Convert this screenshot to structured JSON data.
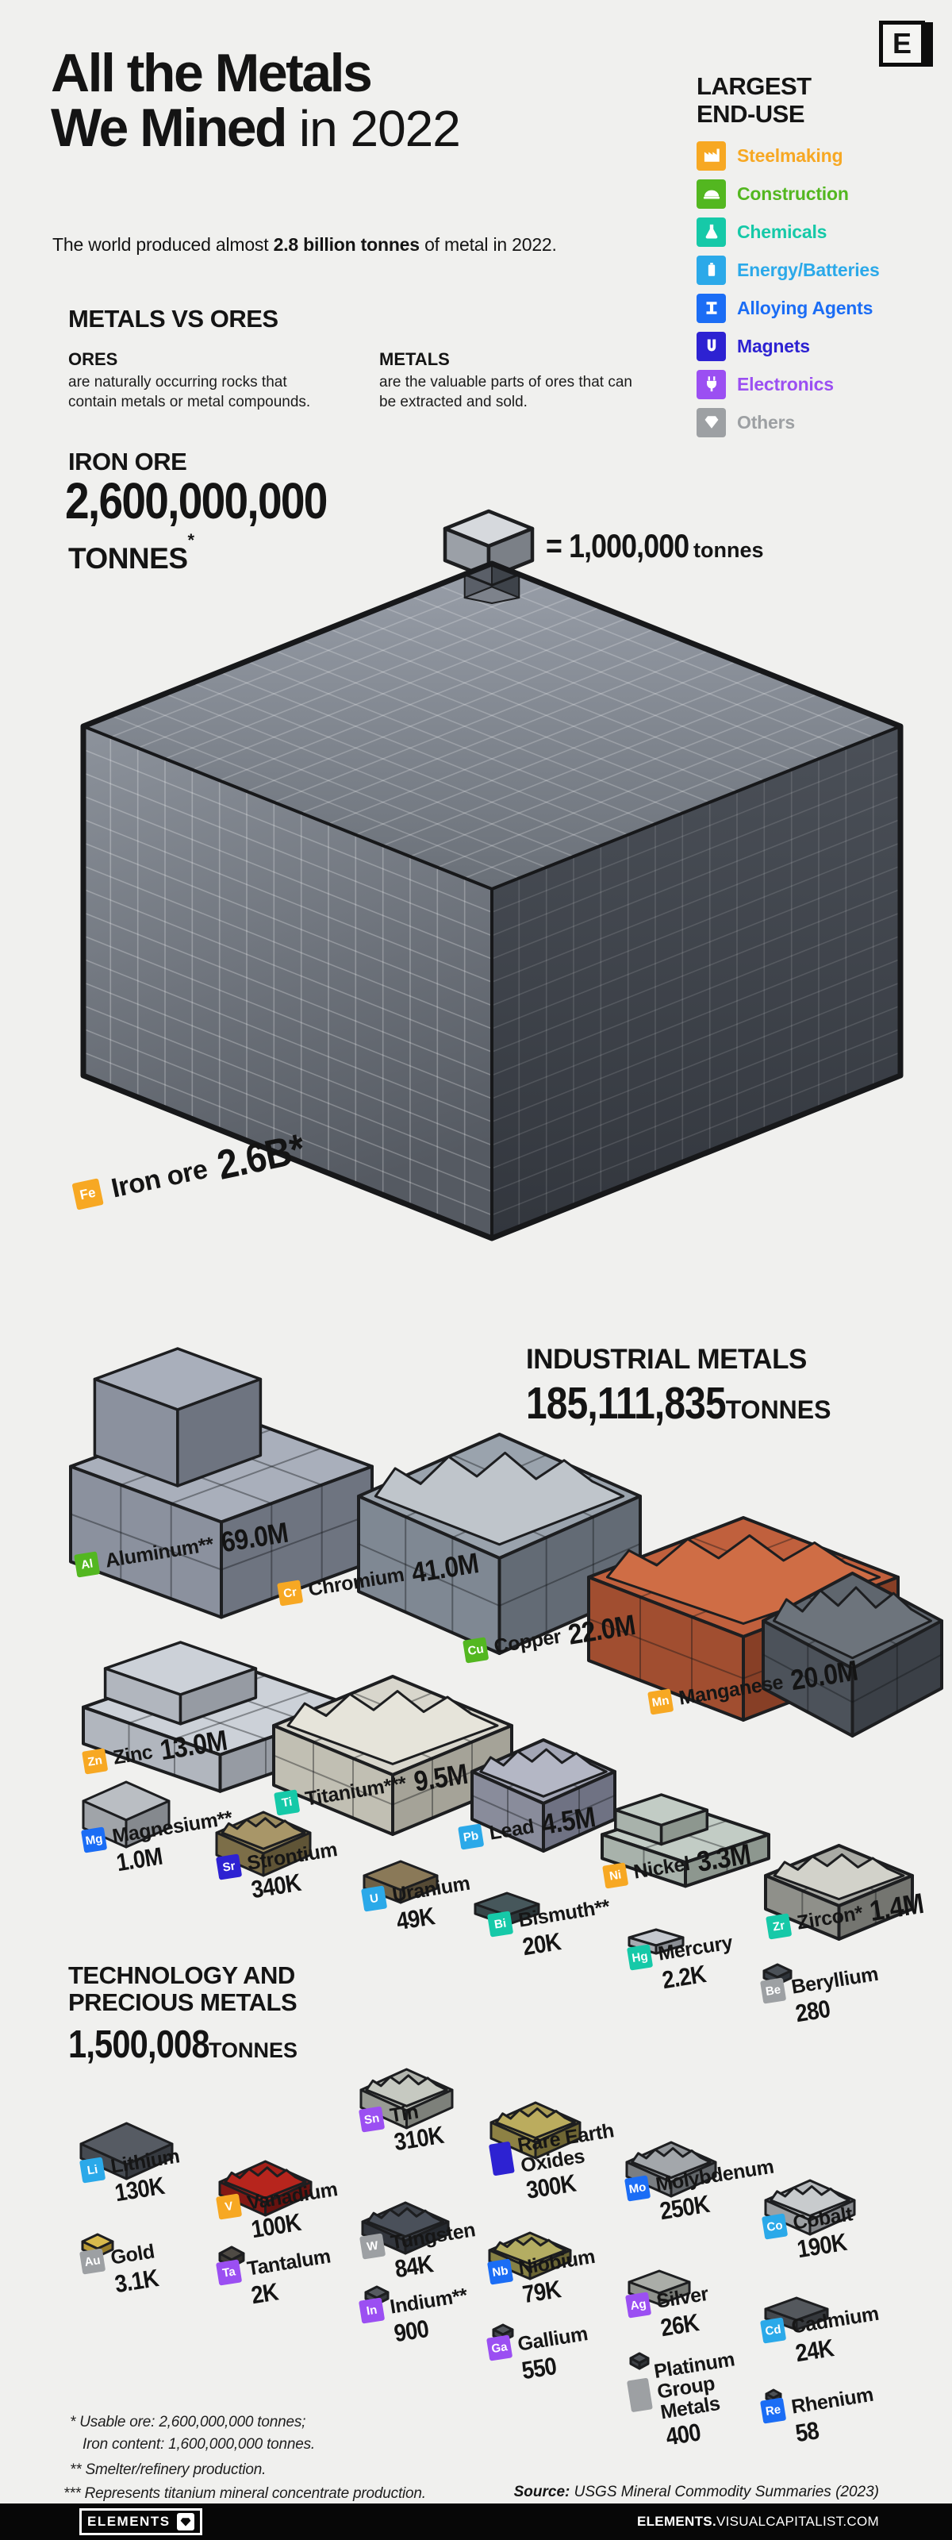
{
  "header": {
    "title_line1": "All the Metals",
    "title_line2_bold": "We Mined",
    "title_line2_rest": " in 2022",
    "subtitle_prefix": "The world produced almost ",
    "subtitle_bold": "2.8 billion tonnes",
    "subtitle_suffix": " of metal in 2022.",
    "logo_letter": "E"
  },
  "end_use_legend": {
    "title_line1": "LARGEST",
    "title_line2": "END-USE",
    "items": [
      {
        "id": "steelmaking",
        "label": "Steelmaking",
        "color": "#F7A823",
        "icon": "factory-icon"
      },
      {
        "id": "construction",
        "label": "Construction",
        "color": "#53B720",
        "icon": "hardhat-icon"
      },
      {
        "id": "chemicals",
        "label": "Chemicals",
        "color": "#16C9A8",
        "icon": "flask-icon"
      },
      {
        "id": "energy",
        "label": "Energy/Batteries",
        "color": "#2BA9E9",
        "icon": "battery-icon"
      },
      {
        "id": "alloying",
        "label": "Alloying Agents",
        "color": "#1B6DF5",
        "icon": "ibeam-icon"
      },
      {
        "id": "magnets",
        "label": "Magnets",
        "color": "#2D22D2",
        "icon": "magnet-icon"
      },
      {
        "id": "electronics",
        "label": "Electronics",
        "color": "#9B4FF2",
        "icon": "plug-icon"
      },
      {
        "id": "others",
        "label": "Others",
        "color": "#9DA0A3",
        "icon": "diamond-icon"
      }
    ]
  },
  "metals_vs_ores": {
    "heading": "METALS VS ORES",
    "ores_title": "ORES",
    "ores_text": "are naturally occurring rocks that contain metals or metal compounds.",
    "metals_title": "METALS",
    "metals_text": "are the valuable parts of ores that can be extracted and sold."
  },
  "iron_ore": {
    "heading": "IRON ORE",
    "amount": "2,600,000,000",
    "unit": "TONNES",
    "asterisk": "*",
    "scale_equals": "= 1,000,000",
    "scale_unit": "tonnes",
    "label": {
      "symbol": "Fe",
      "name": "Iron ore",
      "value": "2.6B*",
      "category": "steelmaking"
    }
  },
  "industrial": {
    "heading": "INDUSTRIAL METALS",
    "total": "185,111,835",
    "unit": "TONNES",
    "items": [
      {
        "id": "al",
        "symbol": "Al",
        "name": "Aluminum**",
        "value": "69.0M",
        "category": "construction",
        "stacked": false
      },
      {
        "id": "cr",
        "symbol": "Cr",
        "name": "Chromium",
        "value": "41.0M",
        "category": "steelmaking",
        "stacked": false
      },
      {
        "id": "cu",
        "symbol": "Cu",
        "name": "Copper",
        "value": "22.0M",
        "category": "construction",
        "stacked": false
      },
      {
        "id": "mn",
        "symbol": "Mn",
        "name": "Manganese",
        "value": "20.0M",
        "category": "steelmaking",
        "stacked": false
      },
      {
        "id": "zn",
        "symbol": "Zn",
        "name": "Zinc",
        "value": "13.0M",
        "category": "steelmaking",
        "stacked": false
      },
      {
        "id": "ti",
        "symbol": "Ti",
        "name": "Titanium***",
        "value": "9.5M",
        "category": "chemicals",
        "stacked": false
      },
      {
        "id": "pb",
        "symbol": "Pb",
        "name": "Lead",
        "value": "4.5M",
        "category": "energy",
        "stacked": false
      },
      {
        "id": "ni",
        "symbol": "Ni",
        "name": "Nickel",
        "value": "3.3M",
        "category": "steelmaking",
        "stacked": false
      },
      {
        "id": "zr",
        "symbol": "Zr",
        "name": "Zircon*",
        "value": "1.4M",
        "category": "chemicals",
        "stacked": false
      },
      {
        "id": "mg",
        "symbol": "Mg",
        "name": "Magnesium**",
        "value": "1.0M",
        "category": "alloying",
        "stacked": true
      },
      {
        "id": "sr",
        "symbol": "Sr",
        "name": "Strontium",
        "value": "340K",
        "category": "magnets",
        "stacked": true
      },
      {
        "id": "u",
        "symbol": "U",
        "name": "Uranium",
        "value": "49K",
        "category": "energy",
        "stacked": true
      },
      {
        "id": "bi",
        "symbol": "Bi",
        "name": "Bismuth**",
        "value": "20K",
        "category": "chemicals",
        "stacked": true
      },
      {
        "id": "hg",
        "symbol": "Hg",
        "name": "Mercury",
        "value": "2.2K",
        "category": "chemicals",
        "stacked": true
      },
      {
        "id": "be",
        "symbol": "Be",
        "name": "Beryllium",
        "value": "280",
        "category": "others",
        "stacked": true
      }
    ]
  },
  "technology": {
    "heading_line1": "TECHNOLOGY AND",
    "heading_line2": "PRECIOUS METALS",
    "total": "1,500,008",
    "unit": "TONNES",
    "items": [
      {
        "id": "li",
        "symbol": "Li",
        "name": "Lithium",
        "value": "130K",
        "category": "energy",
        "stacked": true
      },
      {
        "id": "sn",
        "symbol": "Sn",
        "name": "Tin",
        "value": "310K",
        "category": "electronics",
        "stacked": true
      },
      {
        "id": "v",
        "symbol": "V",
        "name": "Vanadium",
        "value": "100K",
        "category": "steelmaking",
        "stacked": true
      },
      {
        "id": "reo",
        "symbol": "",
        "name": "Rare Earth Oxides",
        "value": "300K",
        "category": "magnets",
        "stacked": true
      },
      {
        "id": "mo",
        "symbol": "Mo",
        "name": "Molybdenum",
        "value": "250K",
        "category": "alloying",
        "stacked": true
      },
      {
        "id": "co",
        "symbol": "Co",
        "name": "Cobalt",
        "value": "190K",
        "category": "energy",
        "stacked": true
      },
      {
        "id": "au",
        "symbol": "Au",
        "name": "Gold",
        "value": "3.1K",
        "category": "others",
        "stacked": true
      },
      {
        "id": "w",
        "symbol": "W",
        "name": "Tungsten",
        "value": "84K",
        "category": "others",
        "stacked": true
      },
      {
        "id": "nb",
        "symbol": "Nb",
        "name": "Niobium",
        "value": "79K",
        "category": "alloying",
        "stacked": true
      },
      {
        "id": "ta",
        "symbol": "Ta",
        "name": "Tantalum",
        "value": "2K",
        "category": "electronics",
        "stacked": true
      },
      {
        "id": "in",
        "symbol": "In",
        "name": "Indium**",
        "value": "900",
        "category": "electronics",
        "stacked": true
      },
      {
        "id": "ag",
        "symbol": "Ag",
        "name": "Silver",
        "value": "26K",
        "category": "electronics",
        "stacked": true
      },
      {
        "id": "ga",
        "symbol": "Ga",
        "name": "Gallium",
        "value": "550",
        "category": "electronics",
        "stacked": true
      },
      {
        "id": "cd",
        "symbol": "Cd",
        "name": "Cadmium",
        "value": "24K",
        "category": "energy",
        "stacked": true
      },
      {
        "id": "pgm",
        "symbol": "",
        "name": "Platinum Group Metals",
        "value": "400",
        "category": "others",
        "stacked": true
      },
      {
        "id": "re",
        "symbol": "Re",
        "name": "Rhenium",
        "value": "58",
        "category": "alloying",
        "stacked": true
      }
    ]
  },
  "footnotes": {
    "fn1_line1": "* Usable ore: 2,600,000,000 tonnes;",
    "fn1_line2": "Iron content: 1,600,000,000 tonnes.",
    "fn2": "** Smelter/refinery production.",
    "fn3": "*** Represents titanium mineral concentrate production."
  },
  "source": {
    "label": "Source:",
    "text": " USGS Mineral Commodity Summaries (2023)"
  },
  "footer": {
    "brand": "ELEMENTS",
    "url_bold": "ELEMENTS.",
    "url_rest": "VISUALCAPITALIST.COM"
  },
  "chart_data": {
    "type": "table",
    "title": "All the Metals We Mined in 2022",
    "subtitle": "The world produced almost 2.8 billion tonnes of metal in 2022.",
    "unit": "tonnes",
    "note": "Isotype/proportional-volume infographic; 1 cube = 1,000,000 tonnes",
    "groups": [
      {
        "group": "Iron ore",
        "total_tonnes": 2600000000,
        "items": [
          {
            "metal": "Iron ore",
            "symbol": "Fe",
            "tonnes": 2600000000,
            "display": "2.6B*",
            "end_use": "Steelmaking"
          }
        ]
      },
      {
        "group": "Industrial metals",
        "total_tonnes": 185111835,
        "items": [
          {
            "metal": "Aluminum",
            "symbol": "Al",
            "tonnes": 69000000,
            "display": "69.0M",
            "end_use": "Construction"
          },
          {
            "metal": "Chromium",
            "symbol": "Cr",
            "tonnes": 41000000,
            "display": "41.0M",
            "end_use": "Steelmaking"
          },
          {
            "metal": "Copper",
            "symbol": "Cu",
            "tonnes": 22000000,
            "display": "22.0M",
            "end_use": "Construction"
          },
          {
            "metal": "Manganese",
            "symbol": "Mn",
            "tonnes": 20000000,
            "display": "20.0M",
            "end_use": "Steelmaking"
          },
          {
            "metal": "Zinc",
            "symbol": "Zn",
            "tonnes": 13000000,
            "display": "13.0M",
            "end_use": "Steelmaking"
          },
          {
            "metal": "Titanium",
            "symbol": "Ti",
            "tonnes": 9500000,
            "display": "9.5M",
            "end_use": "Chemicals"
          },
          {
            "metal": "Lead",
            "symbol": "Pb",
            "tonnes": 4500000,
            "display": "4.5M",
            "end_use": "Energy/Batteries"
          },
          {
            "metal": "Nickel",
            "symbol": "Ni",
            "tonnes": 3300000,
            "display": "3.3M",
            "end_use": "Steelmaking"
          },
          {
            "metal": "Zircon",
            "symbol": "Zr",
            "tonnes": 1400000,
            "display": "1.4M",
            "end_use": "Chemicals"
          },
          {
            "metal": "Magnesium",
            "symbol": "Mg",
            "tonnes": 1000000,
            "display": "1.0M",
            "end_use": "Alloying Agents"
          },
          {
            "metal": "Strontium",
            "symbol": "Sr",
            "tonnes": 340000,
            "display": "340K",
            "end_use": "Magnets"
          },
          {
            "metal": "Uranium",
            "symbol": "U",
            "tonnes": 49000,
            "display": "49K",
            "end_use": "Energy/Batteries"
          },
          {
            "metal": "Bismuth",
            "symbol": "Bi",
            "tonnes": 20000,
            "display": "20K",
            "end_use": "Chemicals"
          },
          {
            "metal": "Mercury",
            "symbol": "Hg",
            "tonnes": 2200,
            "display": "2.2K",
            "end_use": "Chemicals"
          },
          {
            "metal": "Beryllium",
            "symbol": "Be",
            "tonnes": 280,
            "display": "280",
            "end_use": "Others"
          }
        ]
      },
      {
        "group": "Technology and precious metals",
        "total_tonnes": 1500008,
        "items": [
          {
            "metal": "Tin",
            "symbol": "Sn",
            "tonnes": 310000,
            "display": "310K",
            "end_use": "Electronics"
          },
          {
            "metal": "Rare Earth Oxides",
            "symbol": "",
            "tonnes": 300000,
            "display": "300K",
            "end_use": "Magnets"
          },
          {
            "metal": "Molybdenum",
            "symbol": "Mo",
            "tonnes": 250000,
            "display": "250K",
            "end_use": "Alloying Agents"
          },
          {
            "metal": "Cobalt",
            "symbol": "Co",
            "tonnes": 190000,
            "display": "190K",
            "end_use": "Energy/Batteries"
          },
          {
            "metal": "Lithium",
            "symbol": "Li",
            "tonnes": 130000,
            "display": "130K",
            "end_use": "Energy/Batteries"
          },
          {
            "metal": "Vanadium",
            "symbol": "V",
            "tonnes": 100000,
            "display": "100K",
            "end_use": "Steelmaking"
          },
          {
            "metal": "Tungsten",
            "symbol": "W",
            "tonnes": 84000,
            "display": "84K",
            "end_use": "Others"
          },
          {
            "metal": "Niobium",
            "symbol": "Nb",
            "tonnes": 79000,
            "display": "79K",
            "end_use": "Alloying Agents"
          },
          {
            "metal": "Silver",
            "symbol": "Ag",
            "tonnes": 26000,
            "display": "26K",
            "end_use": "Electronics"
          },
          {
            "metal": "Cadmium",
            "symbol": "Cd",
            "tonnes": 24000,
            "display": "24K",
            "end_use": "Energy/Batteries"
          },
          {
            "metal": "Gold",
            "symbol": "Au",
            "tonnes": 3100,
            "display": "3.1K",
            "end_use": "Others"
          },
          {
            "metal": "Tantalum",
            "symbol": "Ta",
            "tonnes": 2000,
            "display": "2K",
            "end_use": "Electronics"
          },
          {
            "metal": "Indium",
            "symbol": "In",
            "tonnes": 900,
            "display": "900",
            "end_use": "Electronics"
          },
          {
            "metal": "Gallium",
            "symbol": "Ga",
            "tonnes": 550,
            "display": "550",
            "end_use": "Electronics"
          },
          {
            "metal": "Platinum Group Metals",
            "symbol": "",
            "tonnes": 400,
            "display": "400",
            "end_use": "Others"
          },
          {
            "metal": "Rhenium",
            "symbol": "Re",
            "tonnes": 58,
            "display": "58",
            "end_use": "Alloying Agents"
          }
        ]
      }
    ]
  }
}
